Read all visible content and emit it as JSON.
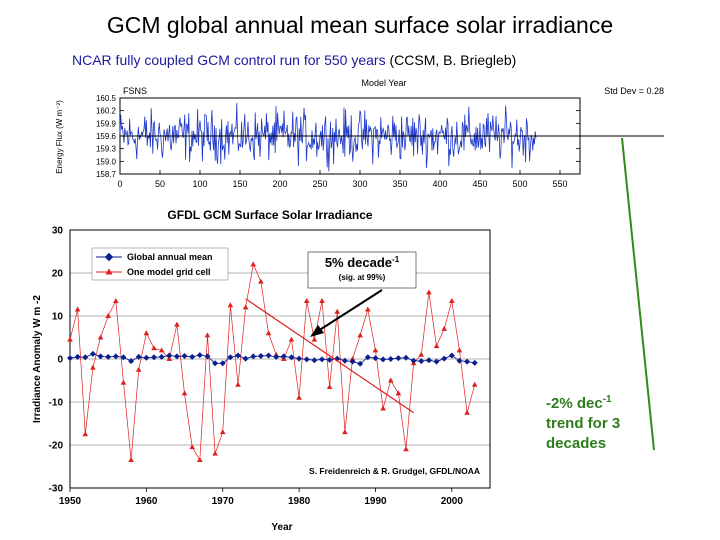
{
  "slide": {
    "title": "GCM global annual mean surface solar irradiance",
    "subtitle_blue": "NCAR fully coupled GCM control run for 550 years",
    "subtitle_rest": " (CCSM, B. Briegleb)"
  },
  "note": {
    "line1_prefix": "-2% dec",
    "line1_sup": "-1",
    "line2": "trend for 3",
    "line3": "decades"
  },
  "colors": {
    "top_series": "#1e38c8",
    "global_mean": "#0b1f8f",
    "grid_cell": "#e02020",
    "arrow": "#2e8b1c"
  },
  "chart_data": [
    {
      "type": "line",
      "panel_label": "FSNS",
      "top_label": "Model Year",
      "std_label": "Std Dev = 0.28",
      "ylabel": "Energy Flux (W m⁻²)",
      "xlim": [
        0,
        575
      ],
      "ylim": [
        158.7,
        160.5
      ],
      "xticks": [
        "0",
        "50",
        "100",
        "150",
        "200",
        "250",
        "300",
        "350",
        "400",
        "450",
        "500",
        "550"
      ],
      "yticks": [
        "160.5",
        "160.2",
        "159.9",
        "159.6",
        "159.3",
        "159.0",
        "158.7"
      ],
      "mean": 159.6,
      "series": [
        {
          "x_start": 0,
          "x_end": 520,
          "mean": 159.6,
          "std": 0.28
        }
      ]
    },
    {
      "type": "line",
      "title": "GFDL GCM Surface Solar Irradiance",
      "xlabel": "Year",
      "ylabel": "Irradiance Anomaly  W m -2",
      "xlim": [
        1950,
        2005
      ],
      "ylim": [
        -30,
        30
      ],
      "xticks": [
        "1950",
        "1960",
        "1970",
        "1980",
        "1990",
        "2000"
      ],
      "yticks": [
        "30",
        "20",
        "10",
        "0",
        "-10",
        "-20",
        "-30"
      ],
      "legend": [
        "Global annual mean",
        "One model grid cell"
      ],
      "credit": "S. Freidenreich & R. Grudgel, GFDL/NOAA",
      "annotation": {
        "text": "5% decade",
        "sup": "-1",
        "sub": "(sig. at 99%)"
      },
      "trend": {
        "x": [
          1973,
          1995
        ],
        "y": [
          14,
          -12.5
        ]
      },
      "x": [
        1950,
        1951,
        1952,
        1953,
        1954,
        1955,
        1956,
        1957,
        1958,
        1959,
        1960,
        1961,
        1962,
        1963,
        1964,
        1965,
        1966,
        1967,
        1968,
        1969,
        1970,
        1971,
        1972,
        1973,
        1974,
        1975,
        1976,
        1977,
        1978,
        1979,
        1980,
        1981,
        1982,
        1983,
        1984,
        1985,
        1986,
        1987,
        1988,
        1989,
        1990,
        1991,
        1992,
        1993,
        1994,
        1995,
        1996,
        1997,
        1998,
        1999,
        2000,
        2001,
        2002,
        2003
      ],
      "series": [
        {
          "name": "Global annual mean",
          "values": [
            0.2,
            0.5,
            0.4,
            1.2,
            0.6,
            0.5,
            0.6,
            0.4,
            -0.5,
            0.5,
            0.3,
            0.4,
            0.5,
            0.8,
            0.6,
            0.7,
            0.5,
            0.9,
            0.6,
            -1.0,
            -1.0,
            0.4,
            0.8,
            0.1,
            0.6,
            0.7,
            0.8,
            0.5,
            0.6,
            0.4,
            0.1,
            -0.1,
            -0.3,
            -0.1,
            -0.2,
            0.1,
            -0.4,
            -0.6,
            -1.1,
            0.4,
            0.2,
            -0.1,
            0.0,
            0.2,
            0.3,
            -0.4,
            -0.5,
            -0.3,
            -0.6,
            0.1,
            0.8,
            -0.4,
            -0.6,
            -0.9
          ]
        },
        {
          "name": "One model grid cell",
          "values": [
            4.5,
            11.5,
            -17.5,
            -2,
            5,
            10,
            13.5,
            -5.5,
            -23.5,
            -2.5,
            6,
            2.5,
            2,
            0,
            8,
            -8,
            -20.5,
            -23.5,
            5.5,
            -22,
            -17,
            12.5,
            -6,
            12,
            22,
            18,
            6,
            1,
            0,
            4.5,
            -9,
            13.5,
            4.5,
            13.5,
            -6.5,
            11,
            -17,
            0,
            5.5,
            11.5,
            2,
            -11.5,
            -5,
            -8,
            -21,
            -1,
            1,
            15.5,
            3,
            7,
            13.5,
            2,
            -12.5,
            -6
          ]
        }
      ]
    }
  ]
}
